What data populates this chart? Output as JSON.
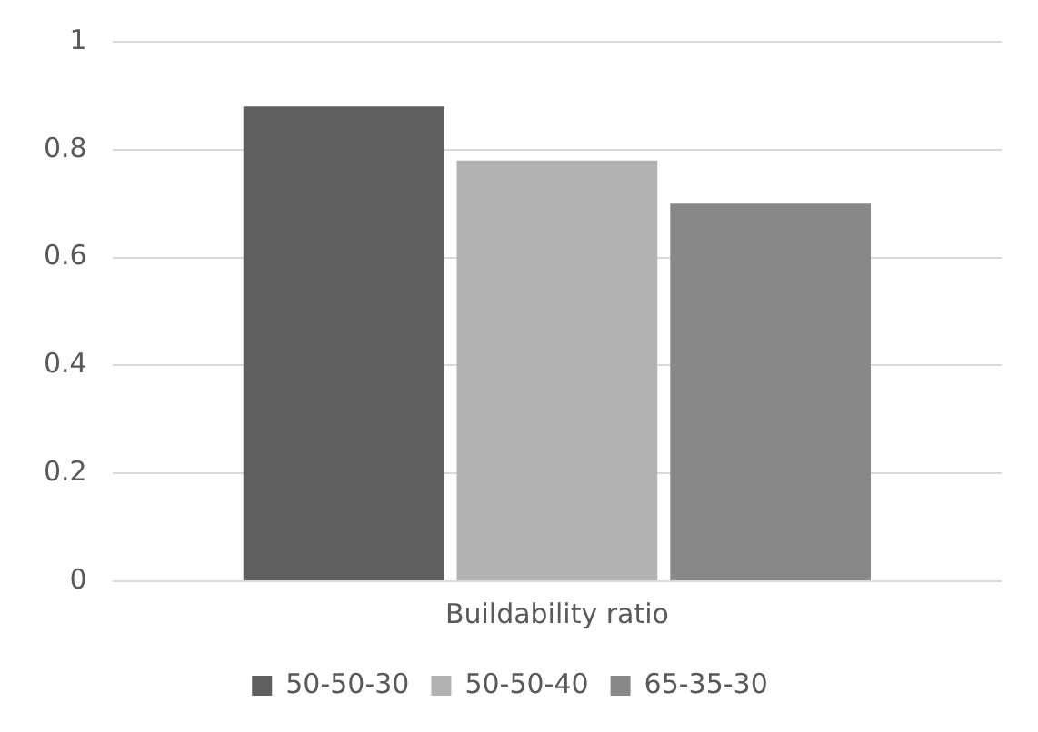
{
  "chart_data": {
    "type": "bar",
    "categories": [
      "Buildability ratio"
    ],
    "series": [
      {
        "name": "50-50-30",
        "color": "#5f5f5f",
        "values": [
          0.88
        ]
      },
      {
        "name": "50-50-40",
        "color": "#b2b2b2",
        "values": [
          0.78
        ]
      },
      {
        "name": "65-35-30",
        "color": "#888888",
        "values": [
          0.7
        ]
      }
    ],
    "ylim": [
      0,
      1
    ],
    "yticks": [
      0,
      0.2,
      0.4,
      0.6,
      0.8,
      1
    ],
    "grid": "y",
    "legend": "bottom"
  }
}
